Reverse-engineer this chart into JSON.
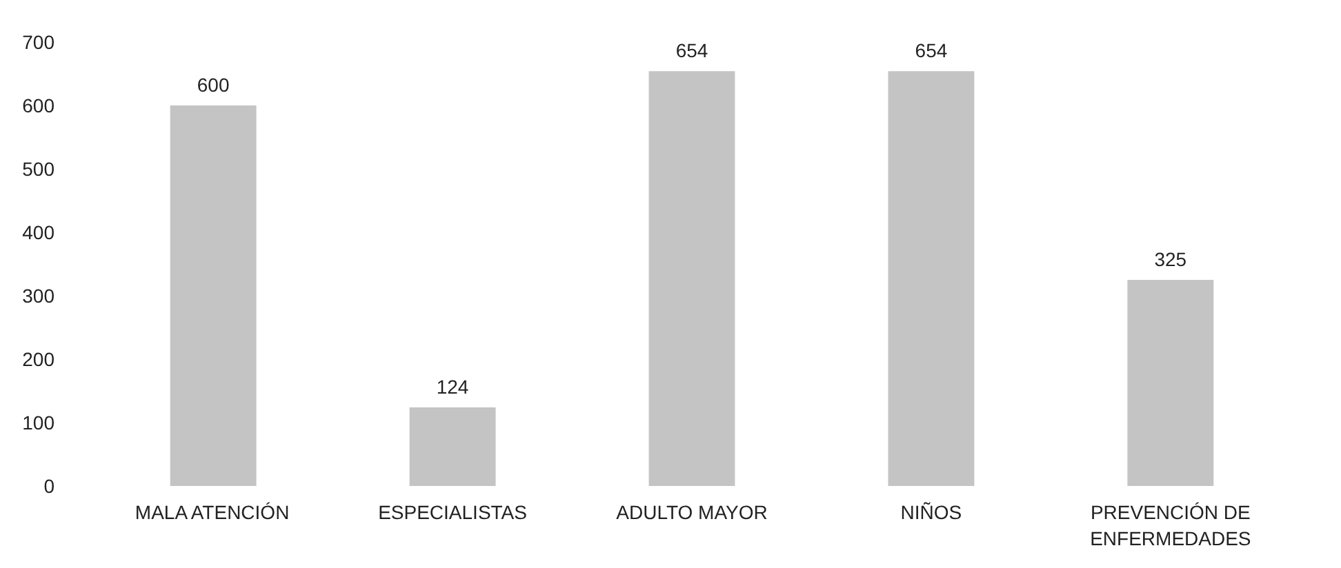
{
  "chart_data": {
    "type": "bar",
    "categories": [
      "MALA ATENCIÓN",
      "ESPECIALISTAS",
      "ADULTO MAYOR",
      "NIÑOS",
      "PREVENCIÓN DE\nENFERMEDADES"
    ],
    "values": [
      600,
      124,
      654,
      654,
      325
    ],
    "color": "#c4c4c4",
    "ylim": [
      0,
      700
    ],
    "yticks": [
      0,
      100,
      200,
      300,
      400,
      500,
      600,
      700
    ],
    "grid": false,
    "data_labels": true
  }
}
